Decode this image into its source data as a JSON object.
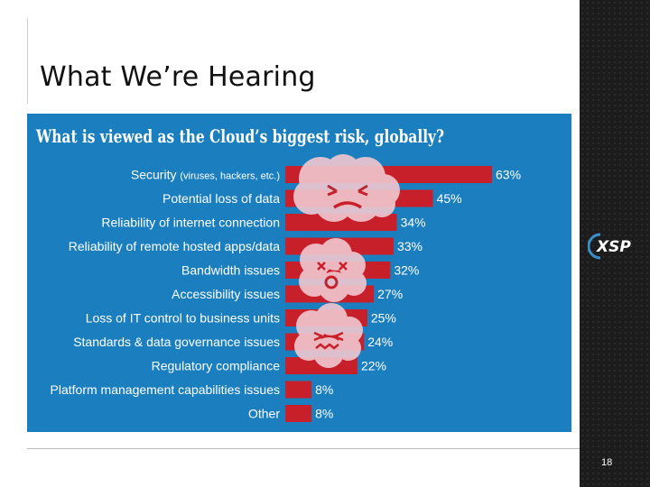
{
  "slide": {
    "title": "What We’re Hearing",
    "page_number": "18",
    "logo_text": "XSP"
  },
  "colors": {
    "chart_background": "#1b7fbf",
    "bar": "#c8202a",
    "text": "#ffffff",
    "panel": "#1c1c1c"
  },
  "chart_data": {
    "type": "bar",
    "orientation": "horizontal",
    "title": "What is viewed as the Cloud’s biggest risk, globally?",
    "categories": [
      "Security (viruses, hackers, etc.)",
      "Potential loss of data",
      "Reliability of internet connection",
      "Reliability of remote hosted apps/data",
      "Bandwidth issues",
      "Accessibility issues",
      "Loss of IT control to business units",
      "Standards & data governance issues",
      "Regulatory compliance",
      "Platform management capabilities issues",
      "Other"
    ],
    "values": [
      63,
      45,
      34,
      33,
      32,
      27,
      25,
      24,
      22,
      8,
      8
    ],
    "value_labels": [
      "63%",
      "45%",
      "34%",
      "33%",
      "32%",
      "27%",
      "25%",
      "24%",
      "22%",
      "8%",
      "8%"
    ],
    "xlim": [
      0,
      63
    ],
    "xlabel": "",
    "ylabel": "",
    "grid": false,
    "legend": "none"
  }
}
